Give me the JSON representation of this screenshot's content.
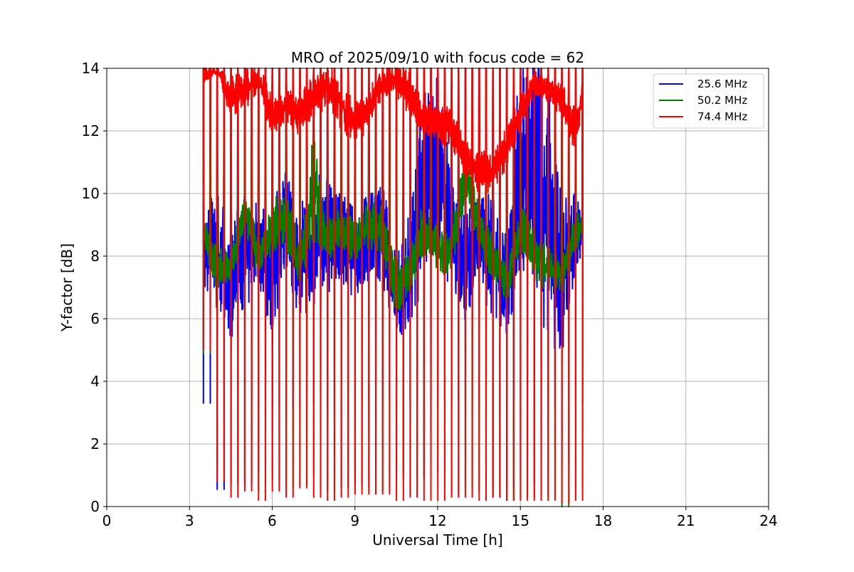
{
  "chart_data": {
    "type": "line",
    "title": "MRO of 2025/09/10 with focus code = 62",
    "xlabel": "Universal Time [h]",
    "ylabel": "Y-factor [dB]",
    "xlim": [
      0,
      24
    ],
    "ylim": [
      0,
      14
    ],
    "xticks": [
      0,
      3,
      6,
      9,
      12,
      15,
      18,
      21,
      24
    ],
    "yticks": [
      0,
      2,
      4,
      6,
      8,
      10,
      12,
      14
    ],
    "grid": true,
    "legend_position": "top-right",
    "spike_period_h": 0.25,
    "series": [
      {
        "name": "25.6 MHz",
        "color": "#0000ff",
        "x": [
          3.5,
          4.0,
          4.5,
          5.0,
          5.5,
          6.0,
          6.5,
          7.0,
          7.5,
          8.0,
          8.5,
          9.0,
          9.5,
          10.0,
          10.5,
          11.0,
          11.5,
          12.0,
          12.5,
          13.0,
          13.5,
          14.0,
          14.5,
          15.0,
          15.5,
          16.0,
          16.5,
          17.0,
          17.25
        ],
        "low": [
          7.2,
          6.8,
          5.6,
          6.8,
          7.2,
          6.0,
          8.0,
          6.2,
          7.0,
          7.4,
          7.2,
          7.0,
          7.4,
          7.6,
          5.8,
          6.0,
          8.2,
          8.4,
          7.4,
          6.4,
          7.0,
          6.6,
          5.6,
          8.4,
          7.8,
          6.4,
          5.2,
          7.6,
          8.4
        ],
        "high": [
          8.8,
          9.8,
          8.4,
          9.8,
          9.2,
          9.0,
          10.8,
          9.0,
          10.2,
          10.0,
          9.6,
          9.2,
          9.8,
          10.2,
          7.6,
          9.0,
          12.6,
          13.2,
          10.0,
          9.0,
          9.8,
          9.4,
          8.4,
          13.6,
          13.4,
          12.6,
          9.4,
          9.8,
          9.6
        ],
        "dips": [
          3.3,
          0.55,
          0.8,
          0.7,
          1.15,
          3.2,
          3.1,
          3.2,
          3.3,
          3.2,
          0.6,
          0.7,
          3.3,
          3.4,
          0.9,
          3.3,
          0.9,
          3.4,
          3.3,
          3.4,
          3.3,
          0.5,
          0.6,
          1.0,
          0.7,
          3.2,
          1.4,
          3.3,
          6.5
        ]
      },
      {
        "name": "50.2 MHz",
        "color": "#008000",
        "x": [
          3.5,
          4.0,
          4.5,
          5.0,
          5.5,
          6.0,
          6.5,
          7.0,
          7.5,
          8.0,
          8.5,
          9.0,
          9.5,
          10.0,
          10.5,
          11.0,
          11.5,
          12.0,
          12.5,
          13.0,
          13.5,
          14.0,
          14.5,
          15.0,
          15.5,
          16.0,
          16.5,
          17.0,
          17.25
        ],
        "low": [
          8.4,
          7.0,
          7.2,
          9.0,
          7.4,
          8.2,
          8.4,
          7.2,
          8.8,
          8.0,
          8.2,
          8.0,
          8.4,
          8.2,
          6.2,
          7.0,
          8.2,
          7.6,
          7.6,
          10.0,
          8.4,
          7.2,
          6.6,
          8.4,
          7.4,
          7.0,
          6.8,
          8.2,
          8.8
        ],
        "high": [
          9.2,
          8.2,
          8.0,
          10.0,
          8.4,
          9.6,
          10.0,
          8.2,
          11.6,
          9.0,
          9.4,
          9.0,
          9.6,
          9.4,
          7.6,
          8.0,
          9.6,
          8.8,
          8.8,
          11.4,
          9.4,
          8.4,
          7.6,
          9.6,
          8.6,
          8.2,
          7.8,
          9.2,
          9.4
        ],
        "dips": [
          4.9,
          1.1,
          0.7,
          0.9,
          0.5,
          0.8,
          0.6,
          0.7,
          1.0,
          0.5,
          0.6,
          1.0,
          0.6,
          0.5,
          1.2,
          0.4,
          1.0,
          1.1,
          0.4,
          0.6,
          0.5,
          0.3,
          0.2,
          0.3,
          0.3,
          0.4,
          0.0,
          0.6,
          7.4
        ]
      },
      {
        "name": "74.4 MHz",
        "color": "#ff0000",
        "x": [
          3.5,
          4.0,
          4.5,
          5.0,
          5.5,
          6.0,
          6.5,
          7.0,
          7.5,
          8.0,
          8.5,
          9.0,
          9.5,
          10.0,
          10.5,
          11.0,
          11.5,
          12.0,
          12.5,
          13.0,
          13.5,
          14.0,
          14.5,
          15.0,
          15.5,
          16.0,
          16.5,
          17.0,
          17.25
        ],
        "low": [
          13.6,
          13.8,
          12.6,
          12.8,
          13.4,
          11.8,
          12.4,
          12.0,
          12.4,
          13.0,
          12.2,
          11.8,
          12.2,
          13.2,
          13.2,
          12.6,
          12.0,
          11.8,
          11.6,
          10.6,
          10.2,
          10.2,
          11.0,
          12.2,
          13.2,
          13.0,
          12.6,
          11.4,
          12.8
        ],
        "high": [
          14.0,
          14.0,
          13.6,
          13.8,
          14.0,
          13.0,
          13.2,
          13.0,
          13.6,
          14.0,
          13.4,
          12.8,
          13.2,
          14.0,
          14.0,
          13.8,
          12.8,
          12.8,
          12.6,
          11.6,
          11.2,
          11.2,
          12.0,
          13.0,
          13.8,
          13.6,
          13.4,
          12.6,
          13.6
        ],
        "dips": [
          5.0,
          0.8,
          0.3,
          0.5,
          0.2,
          0.5,
          0.3,
          0.6,
          0.3,
          0.2,
          0.3,
          0.4,
          0.4,
          0.4,
          0.2,
          0.3,
          0.2,
          0.2,
          0.3,
          0.3,
          0.2,
          0.3,
          0.2,
          0.2,
          0.2,
          0.2,
          0.1,
          0.2,
          10.8
        ]
      }
    ]
  }
}
